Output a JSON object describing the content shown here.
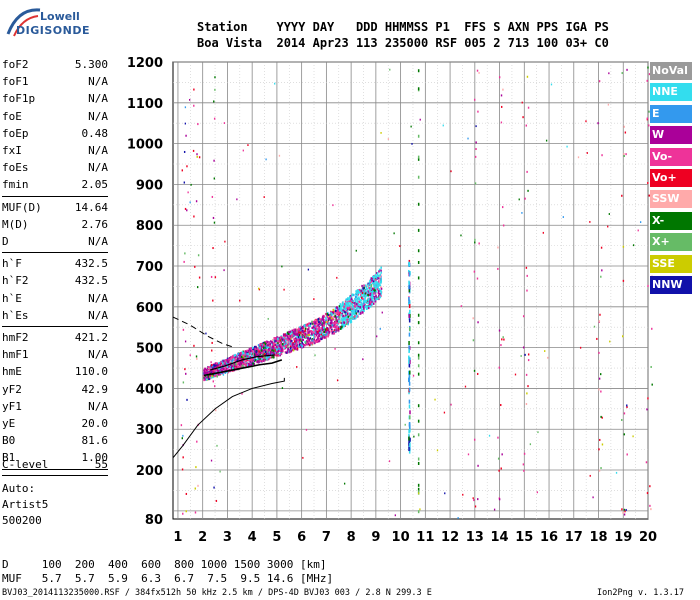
{
  "logo": {
    "line1": "Lowell",
    "line2": "DIGISONDE"
  },
  "header": {
    "row1": "Station    YYYY DAY   DDD HHMMSS P1  FFS S AXN PPS IGA PS",
    "row2": "Boa Vista  2014 Apr23 113 235000 RSF 005 2 713 100 03+ C0"
  },
  "params_group1": [
    {
      "name": "foF2",
      "value": "5.300"
    },
    {
      "name": "foF1",
      "value": "N/A"
    },
    {
      "name": "foF1p",
      "value": "N/A"
    },
    {
      "name": "foE",
      "value": "N/A"
    },
    {
      "name": "foEp",
      "value": "0.48"
    },
    {
      "name": "fxI",
      "value": "N/A"
    },
    {
      "name": "foEs",
      "value": "N/A"
    },
    {
      "name": "fmin",
      "value": "2.05"
    }
  ],
  "params_group2": [
    {
      "name": "MUF(D)",
      "value": "14.64"
    },
    {
      "name": "M(D)",
      "value": "2.76"
    },
    {
      "name": "D",
      "value": "N/A"
    }
  ],
  "params_group3": [
    {
      "name": "h`F",
      "value": "432.5"
    },
    {
      "name": "h`F2",
      "value": "432.5"
    },
    {
      "name": "h`E",
      "value": "N/A"
    },
    {
      "name": "h`Es",
      "value": "N/A"
    }
  ],
  "params_group4": [
    {
      "name": "hmF2",
      "value": "421.2"
    },
    {
      "name": "hmF1",
      "value": "N/A"
    },
    {
      "name": "hmE",
      "value": "110.0"
    },
    {
      "name": "yF2",
      "value": "42.9"
    },
    {
      "name": "yF1",
      "value": "N/A"
    },
    {
      "name": "yE",
      "value": "20.0"
    },
    {
      "name": "B0",
      "value": "81.6"
    },
    {
      "name": "B1",
      "value": "1.00"
    }
  ],
  "clevel": {
    "name": "C-level",
    "value": "55"
  },
  "auto": {
    "line1": "Auto:",
    "line2": "Artist5",
    "line3": "500200"
  },
  "legend": [
    {
      "label": "NoVal",
      "color": "#9a9a9a"
    },
    {
      "label": "NNE",
      "color": "#33ddee"
    },
    {
      "label": "E",
      "color": "#3399ee"
    },
    {
      "label": "W",
      "color": "#aa0099"
    },
    {
      "label": "Vo-",
      "color": "#ee3399"
    },
    {
      "label": "Vo+",
      "color": "#ee0022"
    },
    {
      "label": "SSW",
      "color": "#ffaaaa"
    },
    {
      "label": "X-",
      "color": "#007700"
    },
    {
      "label": "X+",
      "color": "#66bb66"
    },
    {
      "label": "SSE",
      "color": "#cccc00"
    },
    {
      "label": "NNW",
      "color": "#1111aa"
    }
  ],
  "chart_data": {
    "type": "scatter",
    "title": "",
    "xlabel": "",
    "ylabel": "",
    "xlim": [
      0.8,
      20.0
    ],
    "ylim": [
      80,
      1200
    ],
    "x_ticks": [
      1,
      2,
      3,
      4,
      5,
      6,
      7,
      8,
      9,
      10,
      11,
      12,
      13,
      14,
      15,
      16,
      17,
      18,
      19,
      20
    ],
    "y_ticks": [
      80,
      100,
      200,
      300,
      400,
      500,
      600,
      700,
      800,
      900,
      1000,
      1100,
      1200
    ],
    "y_tick_labels": [
      "80",
      "",
      "200",
      "300",
      "400",
      "500",
      "600",
      "700",
      "800",
      "900",
      "1000",
      "1100",
      "1200"
    ],
    "grid": true,
    "legend_position": "right"
  },
  "bottom": {
    "row1": "D     100  200  400  600  800 1000 1500 3000 [km]",
    "row2": "MUF   5.7  5.7  5.9  6.3  6.7  7.5  9.5 14.6 [MHz]"
  },
  "footer": {
    "left": "BVJ03_2014113235000.RSF / 384fx512h 50 kHz 2.5 km / DPS-4D BVJ03 003 / 2.8 N 299.3 E",
    "right": "Ion2Png v. 1.3.17"
  }
}
